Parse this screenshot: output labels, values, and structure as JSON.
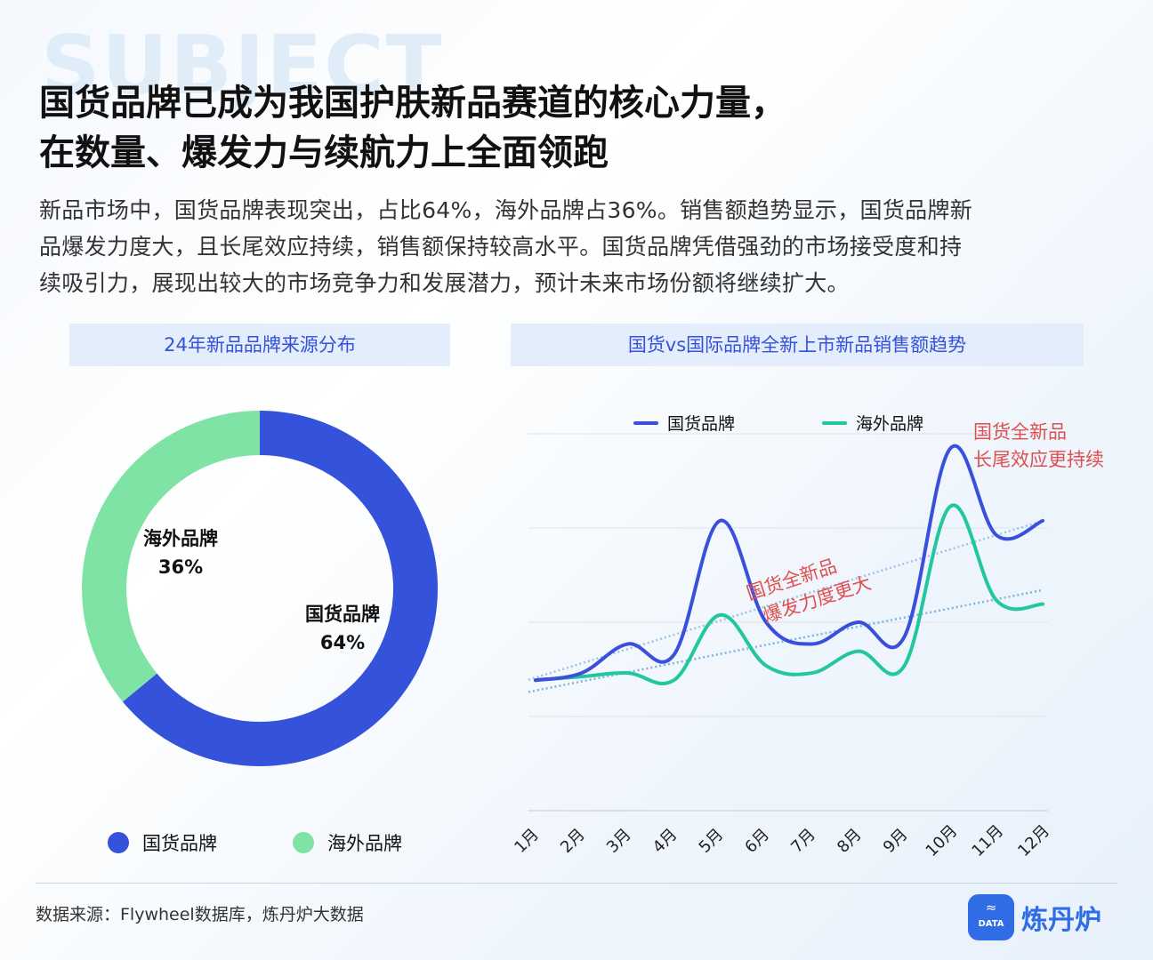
{
  "header": {
    "watermark": "SUBJECT",
    "title_line1": "国货品牌已成为我国护肤新品赛道的核心力量，",
    "title_line2": "在数量、爆发力与续航力上全面领跑",
    "intro_line1": "新品市场中，国货品牌表现突出，占比64%，海外品牌占36%。销售额趋势显示，国货品牌新",
    "intro_line2": "品爆发力度大，且长尾效应持续，销售额保持较高水平。国货品牌凭借强劲的市场接受度和持",
    "intro_line3": "续吸引力，展现出较大的市场竞争力和发展潜力，预计未来市场份额将继续扩大。"
  },
  "colors": {
    "domestic": "#3552db",
    "overseas": "#7fe3a6",
    "line_domestic": "#3a50dc",
    "line_overseas": "#22c7a0",
    "annotation": "#e04f4f"
  },
  "chart_data": [
    {
      "type": "pie",
      "title": "24年新品品牌来源分布",
      "slices": [
        {
          "label": "国货品牌",
          "value": 64,
          "value_label": "64%"
        },
        {
          "label": "海外品牌",
          "value": 36,
          "value_label": "36%"
        }
      ],
      "legend": [
        "国货品牌",
        "海外品牌"
      ],
      "legend_position": "bottom"
    },
    {
      "type": "line",
      "title": "国货vs国际品牌全新上市新品销售额趋势",
      "categories": [
        "1月",
        "2月",
        "3月",
        "4月",
        "5月",
        "6月",
        "7月",
        "8月",
        "9月",
        "10月",
        "11月",
        "12月"
      ],
      "series": [
        {
          "name": "国货品牌",
          "values": [
            0.8,
            0.9,
            1.3,
            1.15,
            3.0,
            1.6,
            1.3,
            1.6,
            1.4,
            4.0,
            2.8,
            3.0
          ]
        },
        {
          "name": "海外品牌",
          "values": [
            0.8,
            0.85,
            0.9,
            0.8,
            1.7,
            1.0,
            0.9,
            1.2,
            1.0,
            3.2,
            1.9,
            1.85
          ]
        }
      ],
      "ylim": [
        -1,
        4.2
      ],
      "grid": "horizontal",
      "legend_position": "top",
      "annotations": [
        {
          "line1": "国货全新品",
          "line2": "爆发力度更大"
        },
        {
          "line1": "国货全新品",
          "line2": "长尾效应更持续"
        }
      ]
    }
  ],
  "footer": {
    "source": "数据来源：Flywheel数据库，炼丹炉大数据",
    "brand": "炼丹炉",
    "brand_icon_text": "DATA"
  }
}
